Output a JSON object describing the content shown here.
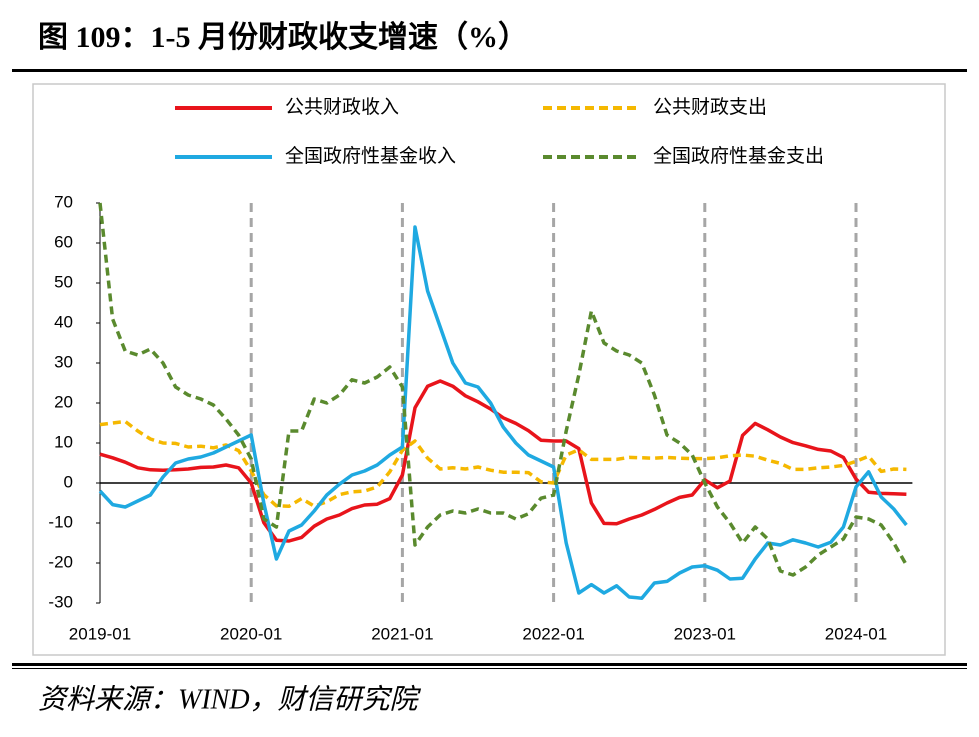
{
  "chart_data": {
    "type": "line",
    "title": "图 109：1-5 月份财政收支增速（%）",
    "categories": [
      "2019-01",
      null,
      null,
      null,
      null,
      null,
      null,
      null,
      null,
      null,
      null,
      null,
      "2020-01",
      null,
      null,
      null,
      null,
      null,
      null,
      null,
      null,
      null,
      null,
      null,
      "2021-01",
      null,
      null,
      null,
      null,
      null,
      null,
      null,
      null,
      null,
      null,
      null,
      "2022-01",
      null,
      null,
      null,
      null,
      null,
      null,
      null,
      null,
      null,
      null,
      null,
      "2023-01",
      null,
      null,
      null,
      null,
      null,
      null,
      null,
      null,
      null,
      null,
      null,
      "2024-01",
      null,
      null,
      null,
      null
    ],
    "series": [
      {
        "name": "公共财政收入",
        "color": "#e8141b",
        "style": "solid",
        "values": [
          7.2,
          6.3,
          5.2,
          3.8,
          3.3,
          3.2,
          3.3,
          3.5,
          3.9,
          4.0,
          4.5,
          3.8,
          0,
          -9.9,
          -14.3,
          -14.5,
          -13.6,
          -10.8,
          -9,
          -8,
          -6.4,
          -5.5,
          -5.3,
          -3.9,
          2,
          18.8,
          24.2,
          25.5,
          24.2,
          21.8,
          20.3,
          18.5,
          16.3,
          14.9,
          13.1,
          10.7,
          10.5,
          10.5,
          8.6,
          -5,
          -10.1,
          -10.2,
          -9,
          -8,
          -6.6,
          -5,
          -3.6,
          -3,
          0.8,
          -1.2,
          0.5,
          11.9,
          14.9,
          13.3,
          11.5,
          10.1,
          9.3,
          8.4,
          8.0,
          6.4,
          1,
          -2.3,
          -2.6,
          -2.7,
          -2.8
        ]
      },
      {
        "name": "公共财政支出",
        "color": "#f5b800",
        "style": "dashed",
        "values": [
          14.6,
          15,
          15.4,
          13,
          11,
          10,
          9.9,
          9,
          9.2,
          8.8,
          9.5,
          8.1,
          3,
          -2.9,
          -5.7,
          -5.8,
          -3.9,
          -5.8,
          -4.7,
          -2.9,
          -2.2,
          -2.0,
          -1.0,
          2.8,
          8.2,
          10.5,
          6.2,
          3.5,
          3.8,
          3.5,
          4.0,
          3.2,
          2.7,
          2.7,
          2.6,
          0.3,
          0,
          7.0,
          8.3,
          5.9,
          5.9,
          5.9,
          6.4,
          6.3,
          6.2,
          6.4,
          6.2,
          6.1,
          6.1,
          6.3,
          6.8,
          7.0,
          6.7,
          5.7,
          4.9,
          3.4,
          3.4,
          3.8,
          4.0,
          4.4,
          5.4,
          6.7,
          2.9,
          3.5,
          3.4
        ]
      },
      {
        "name": "全国政府性基金收入",
        "color": "#1fa9e1",
        "style": "solid",
        "values": [
          -2,
          -5.4,
          -6,
          -4.5,
          -3,
          1.5,
          5,
          6,
          6.5,
          7.5,
          9,
          10.5,
          12,
          -5,
          -19,
          -12,
          -10.5,
          -7,
          -3,
          -0.3,
          2,
          3,
          4.5,
          7,
          9,
          64,
          48,
          39,
          30,
          25,
          24,
          20,
          14,
          10,
          7,
          5.5,
          4,
          -15,
          -27.5,
          -25.4,
          -27.5,
          -25.7,
          -28.5,
          -28.8,
          -25,
          -24.6,
          -22.5,
          -21,
          -20.7,
          -21.8,
          -24,
          -23.8,
          -19,
          -15,
          -15.5,
          -14.2,
          -15,
          -16,
          -14.8,
          -11,
          -1,
          2.8,
          -3.5,
          -6.5,
          -10.5
        ]
      },
      {
        "name": "全国政府性基金支出",
        "color": "#5a8a2e",
        "style": "dashed",
        "values": [
          70,
          41,
          33,
          32,
          33.5,
          30,
          24,
          22,
          21,
          19.5,
          16,
          12,
          6,
          -9,
          -11,
          13,
          13,
          21,
          20,
          22,
          25.8,
          25,
          26.5,
          29,
          24,
          -15.5,
          -11,
          -8,
          -7,
          -7.5,
          -6.5,
          -7.5,
          -7.5,
          -9,
          -7.7,
          -3.8,
          -3,
          13,
          27,
          43,
          35,
          33,
          32,
          30,
          22,
          12,
          10,
          7,
          0,
          -6,
          -10,
          -15,
          -11,
          -14,
          -22,
          -23,
          -21,
          -18,
          -16,
          -14,
          -8.5,
          -9,
          -10.5,
          -15,
          -20.5
        ]
      }
    ],
    "ylim": [
      -30,
      70
    ],
    "yticks": [
      -30,
      -20,
      -10,
      0,
      10,
      20,
      30,
      40,
      50,
      60,
      70
    ]
  },
  "source": "资料来源：WIND，财信研究院"
}
